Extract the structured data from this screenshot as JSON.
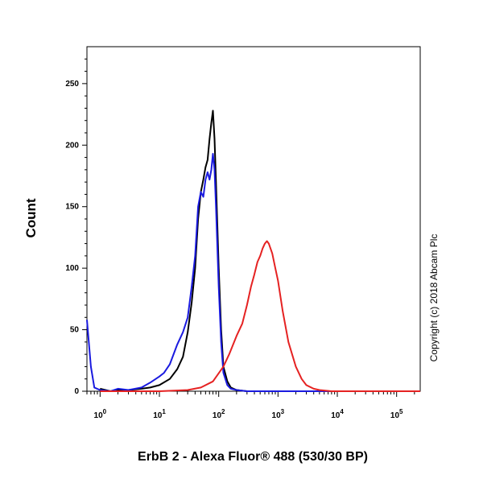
{
  "chart_data": {
    "type": "line",
    "xlabel": "ErbB 2 - Alexa Fluor® 488 (530/30 BP)",
    "ylabel": "Count",
    "x_scale": "log",
    "xlim": [
      0.6,
      250000
    ],
    "ylim": [
      0,
      280
    ],
    "x_ticks": [
      1,
      10,
      100,
      1000,
      10000,
      100000
    ],
    "y_ticks": [
      0,
      50,
      100,
      150,
      200,
      250
    ],
    "copyright": "Copyright (c) 2018 Abcam Plc",
    "series": [
      {
        "color": "#000000",
        "x": [
          1,
          1.5,
          2,
          3,
          5,
          7,
          10,
          15,
          20,
          25,
          30,
          35,
          40,
          45,
          50,
          55,
          60,
          65,
          70,
          75,
          80,
          85,
          90,
          100,
          110,
          120,
          140,
          160,
          200,
          300,
          1000,
          10000,
          250000
        ],
        "y": [
          2,
          0,
          1,
          1,
          2,
          3,
          5,
          10,
          18,
          28,
          48,
          72,
          100,
          140,
          162,
          172,
          182,
          188,
          205,
          218,
          228,
          205,
          170,
          100,
          50,
          20,
          8,
          3,
          1,
          0,
          0,
          0,
          0
        ]
      },
      {
        "color": "#1a1adf",
        "x": [
          0.6,
          0.7,
          0.8,
          1,
          1.5,
          2,
          3,
          5,
          7,
          10,
          12,
          15,
          20,
          25,
          30,
          35,
          40,
          45,
          50,
          55,
          60,
          65,
          70,
          75,
          80,
          85,
          90,
          100,
          110,
          120,
          140,
          160,
          200,
          300,
          1000,
          250000
        ],
        "y": [
          58,
          20,
          3,
          1,
          0,
          2,
          1,
          3,
          7,
          12,
          15,
          22,
          38,
          48,
          60,
          85,
          110,
          150,
          162,
          158,
          172,
          178,
          172,
          180,
          193,
          180,
          150,
          85,
          40,
          15,
          5,
          2,
          1,
          0,
          0,
          0
        ]
      },
      {
        "color": "#e52222",
        "x": [
          1,
          10,
          30,
          50,
          80,
          120,
          150,
          200,
          250,
          300,
          350,
          400,
          450,
          500,
          550,
          600,
          650,
          700,
          800,
          900,
          1000,
          1200,
          1500,
          2000,
          2500,
          3000,
          4000,
          5000,
          8000,
          250000
        ],
        "y": [
          0,
          0,
          1,
          3,
          8,
          20,
          30,
          45,
          55,
          70,
          85,
          95,
          105,
          110,
          116,
          120,
          122,
          120,
          112,
          100,
          90,
          65,
          40,
          20,
          10,
          5,
          2,
          1,
          0,
          0
        ]
      }
    ]
  }
}
